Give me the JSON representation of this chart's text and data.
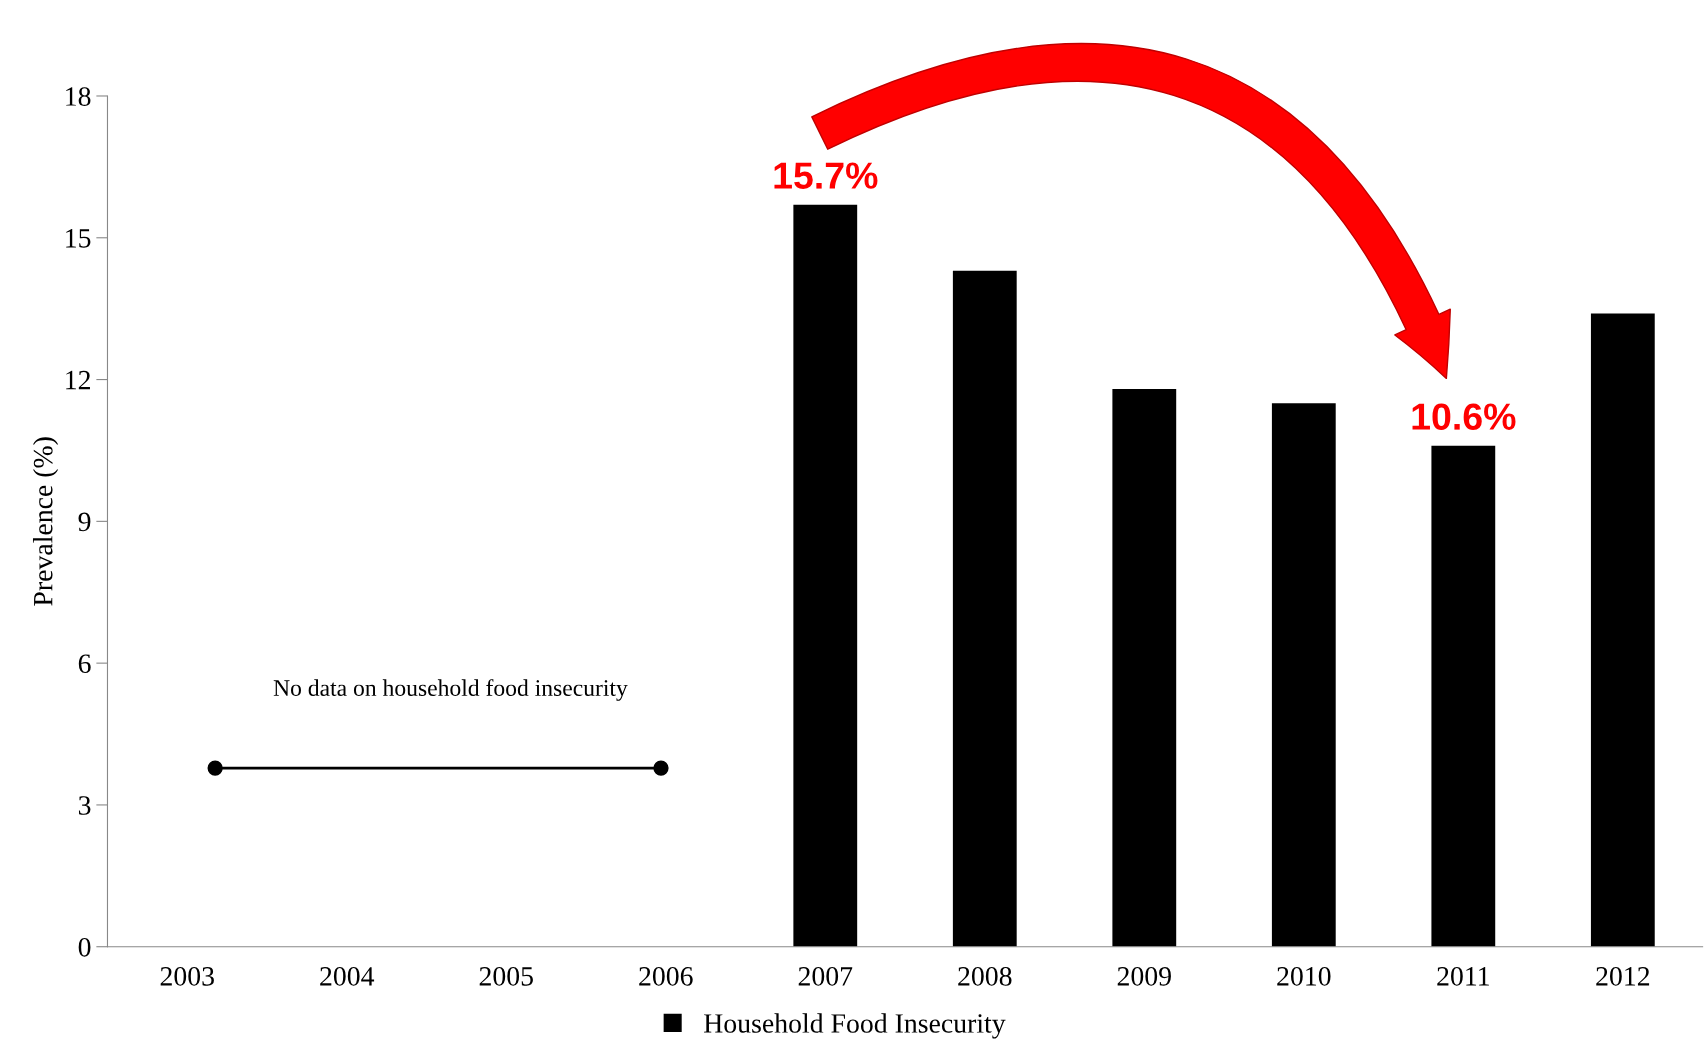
{
  "chart_data": {
    "type": "bar",
    "ylabel": "Prevalence (%)",
    "categories": [
      "2003",
      "2004",
      "2005",
      "2006",
      "2007",
      "2008",
      "2009",
      "2010",
      "2011",
      "2012"
    ],
    "series": [
      {
        "name": "Household Food Insecurity",
        "color": "#000000",
        "values": [
          null,
          null,
          null,
          null,
          15.7,
          14.3,
          11.8,
          11.5,
          10.6,
          13.4
        ],
        "value_labels": [
          null,
          null,
          null,
          null,
          "15.7%",
          null,
          null,
          null,
          "10.6%",
          null
        ]
      }
    ],
    "ylim": [
      0,
      18
    ],
    "yticks": [
      0,
      3,
      6,
      9,
      12,
      15,
      18
    ],
    "annotations": [
      "No data on household food insecurity"
    ],
    "grid": false,
    "legend": "bottom"
  }
}
